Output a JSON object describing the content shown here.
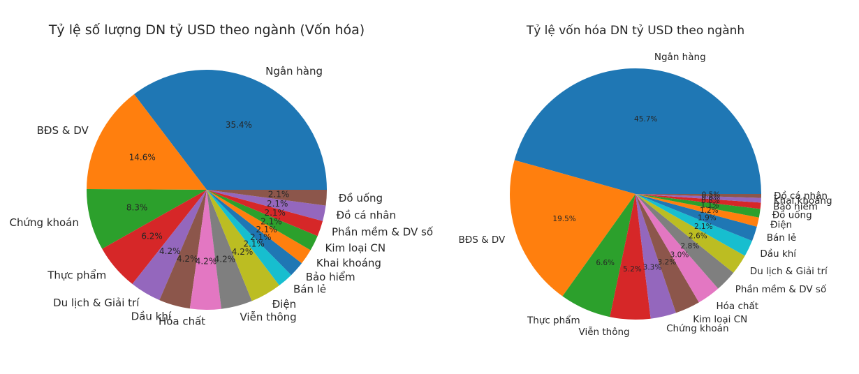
{
  "colors": {
    "palette": [
      "#1f77b4",
      "#ff7f0e",
      "#2ca02c",
      "#d62728",
      "#9467bd",
      "#8c564b",
      "#e377c2",
      "#7f7f7f",
      "#bcbd22",
      "#17becf"
    ],
    "text": "#262626",
    "background": "#ffffff"
  },
  "chart_data": [
    {
      "type": "pie",
      "title": "Tỷ lệ số lượng DN tỷ USD theo ngành (Vốn hóa)",
      "start_angle_deg": 0,
      "direction": "counterclockwise",
      "categories": [
        "Ngân hàng",
        "BĐS & DV",
        "Chứng khoán",
        "Thực phẩm",
        "Du lịch & Giải trí",
        "Dầu khí",
        "Hóa chất",
        "Viễn thông",
        "Điện",
        "Bán lẻ",
        "Bảo hiểm",
        "Khai khoáng",
        "Kim loại CN",
        "Phần mềm & DV số",
        "Đồ cá nhân",
        "Đồ uống"
      ],
      "values": [
        35.4,
        14.6,
        8.3,
        6.2,
        4.2,
        4.2,
        4.2,
        4.2,
        4.2,
        2.1,
        2.1,
        2.1,
        2.1,
        2.1,
        2.1,
        2.1
      ],
      "labels": [
        "35.4%",
        "14.6%",
        "8.3%",
        "6.2%",
        "4.2%",
        "4.2%",
        "4.2%",
        "4.2%",
        "4.2%",
        "2.1%",
        "2.1%",
        "2.1%",
        "2.1%",
        "2.1%",
        "2.1%",
        "2.1%"
      ]
    },
    {
      "type": "pie",
      "title": "Tỷ lệ vốn hóa DN tỷ USD theo ngành",
      "start_angle_deg": 0,
      "direction": "counterclockwise",
      "categories": [
        "Ngân hàng",
        "BĐS & DV",
        "Thực phẩm",
        "Viễn thông",
        "Chứng khoán",
        "Kim loại CN",
        "Hóa chất",
        "Phần mềm & DV số",
        "Du lịch & Giải trí",
        "Dầu khí",
        "Bán lẻ",
        "Điện",
        "Đồ uống",
        "Bảo hiểm",
        "Khai khoáng",
        "Đồ cá nhân"
      ],
      "values": [
        45.7,
        19.5,
        6.6,
        5.2,
        3.3,
        3.2,
        3.0,
        2.8,
        2.6,
        2.1,
        1.9,
        1.2,
        1.1,
        0.8,
        0.6,
        0.5
      ],
      "labels": [
        "45.7%",
        "19.5%",
        "6.6%",
        "5.2%",
        "3.3%",
        "3.2%",
        "3.0%",
        "2.8%",
        "2.6%",
        "2.1%",
        "1.9%",
        "1.2%",
        "1.1%",
        "0.8%",
        "0.6%",
        "0.5%"
      ]
    }
  ]
}
